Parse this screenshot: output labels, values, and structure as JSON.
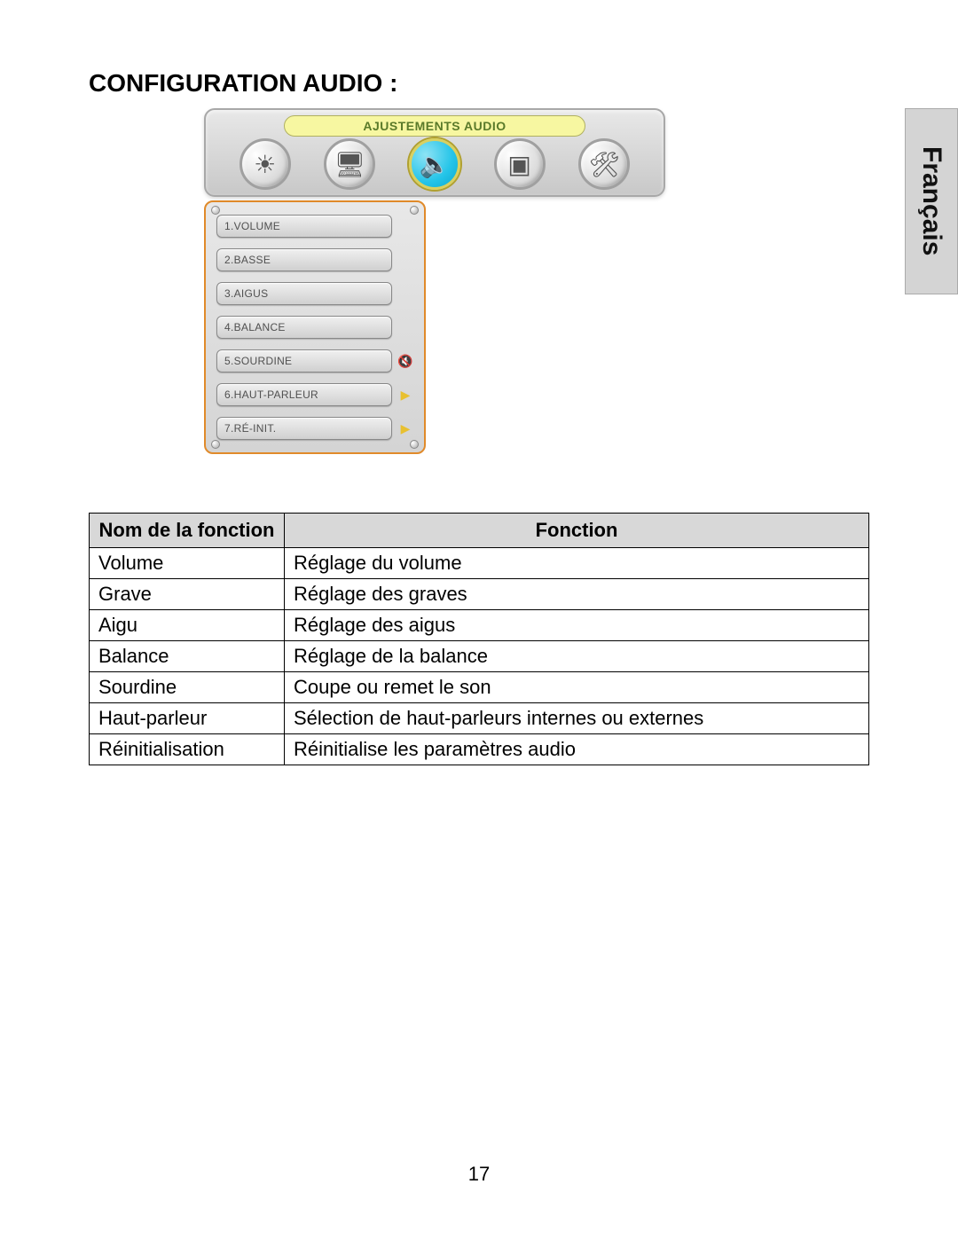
{
  "page_title": "CONFIGURATION AUDIO :",
  "language_tab": "Français",
  "page_number": "17",
  "osd": {
    "title": "AJUSTEMENTS AUDIO",
    "title_bg": "#f7f7a1",
    "title_color": "#5a7a2a",
    "selected_icon_bg": "#24c4e8",
    "selected_icon_border": "#d9d060",
    "panel_border": "#e08a2a",
    "icons": [
      {
        "name": "brightness-icon",
        "glyph": "☀",
        "selected": false
      },
      {
        "name": "display-icon",
        "glyph": "🖥",
        "selected": false
      },
      {
        "name": "audio-icon",
        "glyph": "🔈",
        "selected": true
      },
      {
        "name": "pip-icon",
        "glyph": "▣",
        "selected": false
      },
      {
        "name": "tools-icon",
        "glyph": "🛠",
        "selected": false
      }
    ],
    "menu": [
      {
        "label": "1.VOLUME",
        "icon": "",
        "icon_class": ""
      },
      {
        "label": "2.BASSE",
        "icon": "",
        "icon_class": ""
      },
      {
        "label": "3.AIGUS",
        "icon": "",
        "icon_class": ""
      },
      {
        "label": "4.BALANCE",
        "icon": "",
        "icon_class": ""
      },
      {
        "label": "5.SOURDINE",
        "icon": "🔇",
        "icon_class": "mute"
      },
      {
        "label": "6.HAUT-PARLEUR",
        "icon": "▶",
        "icon_class": "arrow"
      },
      {
        "label": "7.RÉ-INIT.",
        "icon": "▶",
        "icon_class": "arrow"
      }
    ]
  },
  "table": {
    "header_bg": "#d8d8d8",
    "header_name": "Nom de la fonction",
    "header_func": "Fonction",
    "rows": [
      {
        "name": "Volume",
        "desc": "Réglage du volume"
      },
      {
        "name": "Grave",
        "desc": "Réglage des graves"
      },
      {
        "name": "Aigu",
        "desc": "Réglage des aigus"
      },
      {
        "name": "Balance",
        "desc": "Réglage de la balance"
      },
      {
        "name": "Sourdine",
        "desc": "Coupe ou remet le son"
      },
      {
        "name": "Haut-parleur",
        "desc": "Sélection de haut-parleurs internes ou externes"
      },
      {
        "name": "Réinitialisation",
        "desc": "Réinitialise les paramètres audio"
      }
    ]
  }
}
